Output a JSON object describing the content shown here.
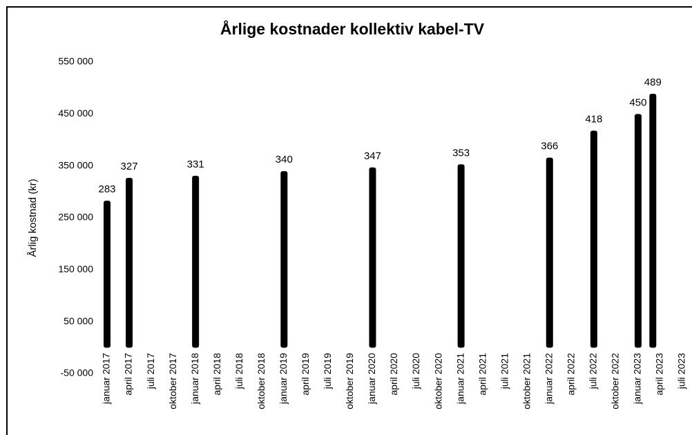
{
  "chart_data": {
    "type": "bar",
    "title": "Årlige kostnader kollektiv kabel-TV",
    "y_label": "Årlig kostnad (kr)",
    "categories": [
      "januar 2017",
      null,
      null,
      "april 2017",
      null,
      null,
      "juli 2017",
      null,
      null,
      "oktober 2017",
      null,
      null,
      "januar 2018",
      null,
      null,
      "april 2018",
      null,
      null,
      "juli 2018",
      null,
      null,
      "oktober 2018",
      null,
      null,
      "januar 2019",
      null,
      null,
      "april 2019",
      null,
      null,
      "juli 2019",
      null,
      null,
      "oktober 2019",
      null,
      null,
      "januar 2020",
      null,
      null,
      "april 2020",
      null,
      null,
      "juli 2020",
      null,
      null,
      "oktober 2020",
      null,
      null,
      "januar 2021",
      null,
      null,
      "april 2021",
      null,
      null,
      "juli 2021",
      null,
      null,
      "oktober 2021",
      null,
      null,
      "januar 2022",
      null,
      null,
      "april 2022",
      null,
      null,
      "juli 2022",
      null,
      null,
      "oktober 2022",
      null,
      null,
      "januar 2023",
      null,
      null,
      "april 2023",
      null,
      null,
      "juli 2023"
    ],
    "values": [
      283000,
      null,
      null,
      327000,
      null,
      null,
      null,
      null,
      null,
      null,
      null,
      null,
      331000,
      null,
      null,
      null,
      null,
      null,
      null,
      null,
      null,
      null,
      null,
      null,
      340000,
      null,
      null,
      null,
      null,
      null,
      null,
      null,
      null,
      null,
      null,
      null,
      347000,
      null,
      null,
      null,
      null,
      null,
      null,
      null,
      null,
      null,
      null,
      null,
      353000,
      null,
      null,
      null,
      null,
      null,
      null,
      null,
      null,
      null,
      null,
      null,
      366000,
      null,
      null,
      null,
      null,
      null,
      418000,
      null,
      null,
      null,
      null,
      null,
      450000,
      null,
      489000,
      null,
      null,
      null,
      null
    ],
    "value_labels": [
      "283",
      null,
      null,
      "327",
      null,
      null,
      null,
      null,
      null,
      null,
      null,
      null,
      "331",
      null,
      null,
      null,
      null,
      null,
      null,
      null,
      null,
      null,
      null,
      null,
      "340",
      null,
      null,
      null,
      null,
      null,
      null,
      null,
      null,
      null,
      null,
      null,
      "347",
      null,
      null,
      null,
      null,
      null,
      null,
      null,
      null,
      null,
      null,
      null,
      "353",
      null,
      null,
      null,
      null,
      null,
      null,
      null,
      null,
      null,
      null,
      null,
      "366",
      null,
      null,
      null,
      null,
      null,
      "418",
      null,
      null,
      null,
      null,
      null,
      "450",
      null,
      "489",
      null,
      null,
      null,
      null
    ],
    "color": "#000000",
    "ylim": [
      -50000,
      550000
    ],
    "yticks": [
      {
        "value": -50000,
        "label": "-50 000"
      },
      {
        "value": 50000,
        "label": "50 000"
      },
      {
        "value": 150000,
        "label": "150 000"
      },
      {
        "value": 250000,
        "label": "250 000"
      },
      {
        "value": 350000,
        "label": "350 000"
      },
      {
        "value": 450000,
        "label": "450 000"
      },
      {
        "value": 550000,
        "label": "550 000"
      }
    ],
    "grid": false
  }
}
